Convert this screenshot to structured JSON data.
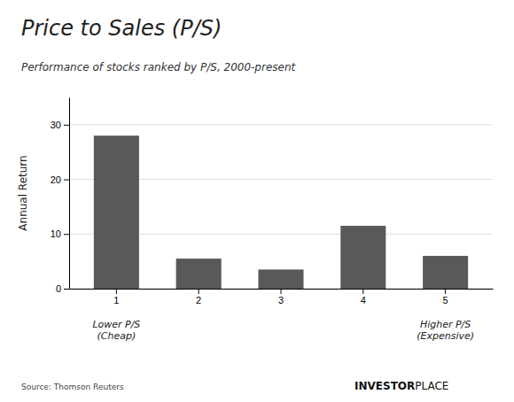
{
  "chart_data": {
    "type": "bar",
    "title": "Price to Sales (P/S)",
    "subtitle": "Performance of stocks ranked by P/S, 2000-present",
    "categories": [
      "1",
      "2",
      "3",
      "4",
      "5"
    ],
    "values": [
      28.0,
      5.5,
      3.5,
      11.5,
      6.0
    ],
    "color": "#595959",
    "ylabel": "Annual Return",
    "ylim": [
      0,
      35
    ],
    "yticks": [
      0,
      10,
      20,
      30
    ],
    "grid": true,
    "annotations": [
      "Lower P/S\n(Cheap)",
      "Higher P/S\n(Expensive)"
    ],
    "source": "Source: Thomson Reuters",
    "logo": [
      "INVESTOR",
      "PLACE"
    ]
  }
}
